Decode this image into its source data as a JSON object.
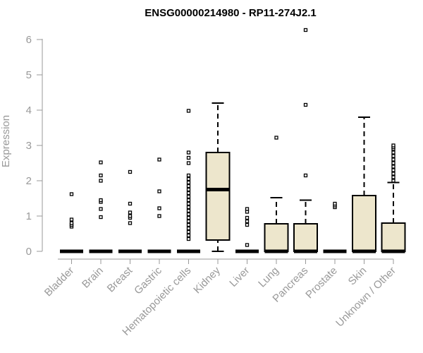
{
  "chart_data": {
    "type": "box",
    "title": "ENSG00000214980 - RP11-274J2.1",
    "xlabel": "",
    "ylabel": "Expression",
    "ylim": [
      0,
      6.3
    ],
    "yticks": [
      0,
      1,
      2,
      3,
      4,
      5,
      6
    ],
    "categories": [
      "Bladder",
      "Brain",
      "Breast",
      "Gastric",
      "Hematopoietic cells",
      "Kidney",
      "Liver",
      "Lung",
      "Pancreas",
      "Prostate",
      "Skin",
      "Unknown / Other"
    ],
    "box_color": "#ede6cc",
    "boxes": [
      {
        "category": "Bladder",
        "whisker_low": 0,
        "q1": 0,
        "median": 0,
        "q3": 0,
        "whisker_high": 0,
        "outliers": [
          0.7,
          0.75,
          0.8,
          0.9,
          1.62
        ]
      },
      {
        "category": "Brain",
        "whisker_low": 0,
        "q1": 0,
        "median": 0,
        "q3": 0,
        "whisker_high": 0,
        "outliers": [
          0.97,
          1.2,
          1.4,
          1.45,
          2.0,
          2.15,
          2.52
        ]
      },
      {
        "category": "Breast",
        "whisker_low": 0,
        "q1": 0,
        "median": 0,
        "q3": 0,
        "whisker_high": 0,
        "outliers": [
          0.8,
          0.95,
          1.0,
          1.1,
          1.35,
          2.25
        ]
      },
      {
        "category": "Gastric",
        "whisker_low": 0,
        "q1": 0,
        "median": 0,
        "q3": 0,
        "whisker_high": 0,
        "outliers": [
          1.0,
          1.22,
          1.7,
          2.6
        ]
      },
      {
        "category": "Hematopoietic cells",
        "whisker_low": 0,
        "q1": 0,
        "median": 0,
        "q3": 0,
        "whisker_high": 0,
        "outliers": [
          0.35,
          0.45,
          0.55,
          0.65,
          0.75,
          0.85,
          0.95,
          1.05,
          1.15,
          1.25,
          1.35,
          1.45,
          1.55,
          1.65,
          1.75,
          1.85,
          1.95,
          2.05,
          2.15,
          2.5,
          2.65,
          2.8,
          3.98
        ]
      },
      {
        "category": "Kidney",
        "whisker_low": 0,
        "q1": 0.32,
        "median": 1.75,
        "q3": 2.8,
        "whisker_high": 4.2,
        "outliers": []
      },
      {
        "category": "Liver",
        "whisker_low": 0,
        "q1": 0,
        "median": 0,
        "q3": 0,
        "whisker_high": 0,
        "outliers": [
          0.18,
          0.75,
          0.85,
          0.95,
          1.12,
          1.2
        ]
      },
      {
        "category": "Lung",
        "whisker_low": 0,
        "q1": 0,
        "median": 0,
        "q3": 0.78,
        "whisker_high": 1.52,
        "outliers": [
          3.22
        ]
      },
      {
        "category": "Pancreas",
        "whisker_low": 0,
        "q1": 0,
        "median": 0,
        "q3": 0.78,
        "whisker_high": 1.45,
        "outliers": [
          2.15,
          4.15,
          6.27
        ]
      },
      {
        "category": "Prostate",
        "whisker_low": 0,
        "q1": 0,
        "median": 0,
        "q3": 0,
        "whisker_high": 0,
        "outliers": [
          1.25,
          1.3,
          1.35
        ]
      },
      {
        "category": "Skin",
        "whisker_low": 0,
        "q1": 0,
        "median": 0,
        "q3": 1.58,
        "whisker_high": 3.8,
        "outliers": []
      },
      {
        "category": "Unknown / Other",
        "whisker_low": 0,
        "q1": 0,
        "median": 0,
        "q3": 0.8,
        "whisker_high": 1.95,
        "outliers": [
          2.0,
          2.1,
          2.2,
          2.3,
          2.4,
          2.5,
          2.6,
          2.7,
          2.8,
          2.9,
          2.95,
          3.0
        ]
      }
    ]
  }
}
